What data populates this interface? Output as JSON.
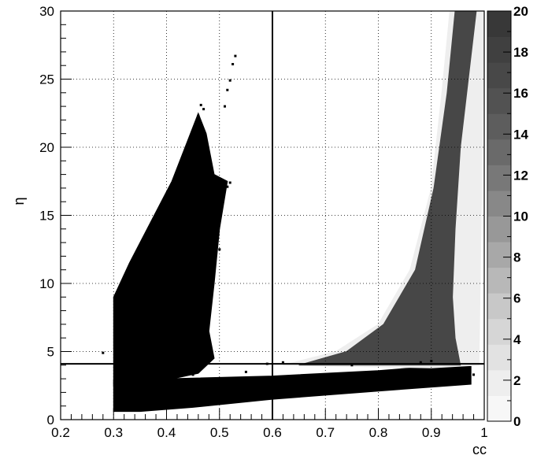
{
  "chart_data": {
    "type": "heatmap",
    "title": "",
    "xlabel": "cc",
    "ylabel": "η",
    "xlim": [
      0.2,
      1.0
    ],
    "ylim": [
      0,
      30
    ],
    "xticks": [
      {
        "value": 0.2,
        "label": "0.2"
      },
      {
        "value": 0.3,
        "label": "0.3"
      },
      {
        "value": 0.4,
        "label": "0.4"
      },
      {
        "value": 0.5,
        "label": "0.5"
      },
      {
        "value": 0.6,
        "label": "0.6"
      },
      {
        "value": 0.7,
        "label": "0.7"
      },
      {
        "value": 0.8,
        "label": "0.8"
      },
      {
        "value": 0.9,
        "label": "0.9"
      },
      {
        "value": 1.0,
        "label": "1"
      }
    ],
    "yticks": [
      {
        "value": 0,
        "label": "0"
      },
      {
        "value": 5,
        "label": "5"
      },
      {
        "value": 10,
        "label": "10"
      },
      {
        "value": 15,
        "label": "15"
      },
      {
        "value": 20,
        "label": "20"
      },
      {
        "value": 25,
        "label": "25"
      },
      {
        "value": 30,
        "label": "30"
      }
    ],
    "grid": true,
    "grid_style": "dotted",
    "cut_lines": {
      "vertical_x": 0.6,
      "horizontal_y": 4.1
    },
    "colorbar": {
      "range": [
        0,
        20
      ],
      "levels": 20,
      "ticks": [
        {
          "value": 0,
          "label": "0"
        },
        {
          "value": 2,
          "label": "2"
        },
        {
          "value": 4,
          "label": "4"
        },
        {
          "value": 6,
          "label": "6"
        },
        {
          "value": 8,
          "label": "8"
        },
        {
          "value": 10,
          "label": "10"
        },
        {
          "value": 12,
          "label": "12"
        },
        {
          "value": 14,
          "label": "14"
        },
        {
          "value": 16,
          "label": "16"
        },
        {
          "value": 18,
          "label": "18"
        },
        {
          "value": 20,
          "label": "20"
        }
      ],
      "colors": [
        "#f7f7f7",
        "#eeeeee",
        "#e2e2e2",
        "#d6d6d6",
        "#c8c8c8",
        "#b8b8b8",
        "#a8a8a8",
        "#989898",
        "#888888",
        "#787878",
        "#6a6a6a",
        "#5d5d5d",
        "#525252",
        "#484848",
        "#404040",
        "#383838"
      ]
    },
    "regions": [
      {
        "name": "background band",
        "description_level": 20,
        "color": "#000000",
        "polygon": [
          [
            0.3,
            0.6
          ],
          [
            0.3,
            2.9
          ],
          [
            0.6,
            3.2
          ],
          [
            0.8,
            3.6
          ],
          [
            0.93,
            4.0
          ],
          [
            0.975,
            3.9
          ],
          [
            0.975,
            2.6
          ],
          [
            0.8,
            2.1
          ],
          [
            0.6,
            1.5
          ],
          [
            0.45,
            0.9
          ],
          [
            0.35,
            0.6
          ]
        ]
      },
      {
        "name": "background spike",
        "description_level": 20,
        "color": "#000000",
        "polygon": [
          [
            0.3,
            2.5
          ],
          [
            0.3,
            9.0
          ],
          [
            0.33,
            11.5
          ],
          [
            0.37,
            14.5
          ],
          [
            0.41,
            17.5
          ],
          [
            0.44,
            20.5
          ],
          [
            0.46,
            22.5
          ],
          [
            0.475,
            21.0
          ],
          [
            0.49,
            18.0
          ],
          [
            0.515,
            17.5
          ],
          [
            0.5,
            14.0
          ],
          [
            0.49,
            10.0
          ],
          [
            0.48,
            6.5
          ],
          [
            0.49,
            4.5
          ],
          [
            0.46,
            3.4
          ],
          [
            0.4,
            2.9
          ]
        ]
      },
      {
        "name": "signal halo",
        "description_level": 1,
        "color": "#eeeeee",
        "polygon": [
          [
            0.62,
            4.0
          ],
          [
            0.72,
            5.0
          ],
          [
            0.8,
            7.0
          ],
          [
            0.86,
            11.0
          ],
          [
            0.9,
            17.0
          ],
          [
            0.92,
            24.0
          ],
          [
            0.935,
            30.0
          ],
          [
            1.0,
            30.0
          ],
          [
            0.99,
            4.0
          ],
          [
            0.9,
            3.8
          ]
        ]
      },
      {
        "name": "signal core",
        "description_level": 15,
        "color": "#474747",
        "polygon": [
          [
            0.65,
            4.0
          ],
          [
            0.74,
            5.0
          ],
          [
            0.81,
            7.0
          ],
          [
            0.87,
            11.0
          ],
          [
            0.905,
            17.0
          ],
          [
            0.93,
            24.0
          ],
          [
            0.945,
            30.0
          ],
          [
            0.985,
            30.0
          ],
          [
            0.97,
            25.0
          ],
          [
            0.955,
            20.0
          ],
          [
            0.945,
            14.0
          ],
          [
            0.94,
            9.0
          ],
          [
            0.945,
            6.0
          ],
          [
            0.955,
            4.0
          ]
        ]
      }
    ],
    "scatter_points": [
      [
        0.53,
        26.7
      ],
      [
        0.525,
        26.1
      ],
      [
        0.52,
        24.9
      ],
      [
        0.515,
        24.2
      ],
      [
        0.51,
        23.0
      ],
      [
        0.465,
        23.1
      ],
      [
        0.47,
        22.8
      ],
      [
        0.46,
        22.3
      ],
      [
        0.42,
        17.8
      ],
      [
        0.415,
        16.9
      ],
      [
        0.4,
        16.2
      ],
      [
        0.39,
        15.5
      ],
      [
        0.37,
        13.8
      ],
      [
        0.36,
        13.0
      ],
      [
        0.35,
        12.2
      ],
      [
        0.33,
        11.1
      ],
      [
        0.32,
        10.1
      ],
      [
        0.31,
        9.4
      ],
      [
        0.305,
        8.8
      ],
      [
        0.38,
        14.6
      ],
      [
        0.395,
        15.9
      ],
      [
        0.41,
        17.2
      ],
      [
        0.5,
        12.5
      ],
      [
        0.515,
        17.1
      ],
      [
        0.52,
        17.4
      ],
      [
        0.59,
        4.1
      ],
      [
        0.62,
        4.2
      ],
      [
        0.75,
        4.0
      ],
      [
        0.88,
        4.2
      ],
      [
        0.9,
        4.3
      ],
      [
        0.28,
        4.9
      ],
      [
        0.45,
        3.3
      ],
      [
        0.55,
        3.5
      ],
      [
        0.97,
        3.7
      ],
      [
        0.98,
        3.3
      ],
      [
        0.48,
        9.5
      ],
      [
        0.49,
        10.8
      ],
      [
        0.47,
        12.5
      ],
      [
        0.46,
        14.5
      ],
      [
        0.45,
        16.5
      ]
    ]
  }
}
